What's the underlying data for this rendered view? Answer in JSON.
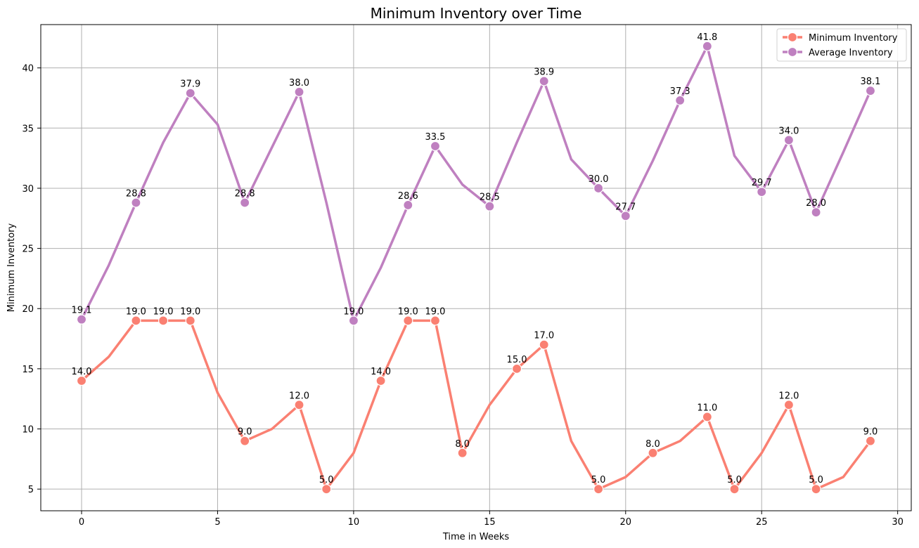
{
  "chart_data": {
    "type": "line",
    "title": "Minimum Inventory over Time",
    "xlabel": "Time in Weeks",
    "ylabel": "Minimum Inventory",
    "xlim": [
      -1.5,
      30.5
    ],
    "ylim": [
      3.2,
      43.6
    ],
    "x_ticks": [
      0,
      5,
      10,
      15,
      20,
      25,
      30
    ],
    "y_ticks": [
      5,
      10,
      15,
      20,
      25,
      30,
      35,
      40
    ],
    "grid": true,
    "legend_position": "top-right",
    "x": [
      0,
      1,
      2,
      3,
      4,
      5,
      6,
      7,
      8,
      9,
      10,
      11,
      12,
      13,
      14,
      15,
      16,
      17,
      18,
      19,
      20,
      21,
      22,
      23,
      24,
      25,
      26,
      27,
      28,
      29
    ],
    "series": [
      {
        "name": "Minimum Inventory",
        "color": "#fa8072",
        "values": [
          14,
          16,
          19,
          19,
          19,
          13,
          9,
          10,
          12,
          5,
          8,
          14,
          19,
          19,
          8,
          12,
          15,
          17,
          9,
          5,
          6,
          8,
          9,
          11,
          5,
          8,
          12,
          5,
          6,
          9
        ],
        "marked_indices": [
          0,
          2,
          3,
          4,
          6,
          8,
          9,
          11,
          12,
          13,
          14,
          16,
          17,
          19,
          21,
          23,
          24,
          26,
          27,
          29
        ],
        "point_labels": [
          "14.0",
          "",
          "19.0",
          "19.0",
          "19.0",
          "",
          "9.0",
          "",
          "12.0",
          "5.0",
          "",
          "14.0",
          "19.0",
          "19.0",
          "8.0",
          "",
          "15.0",
          "17.0",
          "",
          "5.0",
          "",
          "8.0",
          "",
          "11.0",
          "5.0",
          "",
          "12.0",
          "5.0",
          "",
          "9.0"
        ]
      },
      {
        "name": "Average Inventory",
        "color": "#bf80c0",
        "values": [
          19.1,
          23.6,
          28.8,
          33.8,
          37.9,
          35.3,
          28.8,
          33.4,
          38.0,
          28.8,
          19.0,
          23.4,
          28.6,
          33.5,
          30.3,
          28.5,
          33.8,
          38.9,
          32.4,
          30.0,
          27.7,
          32.3,
          37.3,
          41.8,
          32.7,
          29.7,
          34.0,
          28.0,
          33.0,
          38.1
        ],
        "marked_indices": [
          0,
          2,
          4,
          6,
          8,
          10,
          12,
          13,
          15,
          17,
          19,
          20,
          22,
          23,
          25,
          26,
          27,
          29
        ],
        "point_labels": [
          "19.1",
          "",
          "28.8",
          "",
          "37.9",
          "",
          "28.8",
          "",
          "38.0",
          "",
          "19.0",
          "",
          "28.6",
          "33.5",
          "",
          "28.5",
          "",
          "38.9",
          "",
          "30.0",
          "27.7",
          "",
          "37.3",
          "41.8",
          "",
          "29.7",
          "34.0",
          "28.0",
          "",
          "38.1"
        ]
      }
    ]
  }
}
